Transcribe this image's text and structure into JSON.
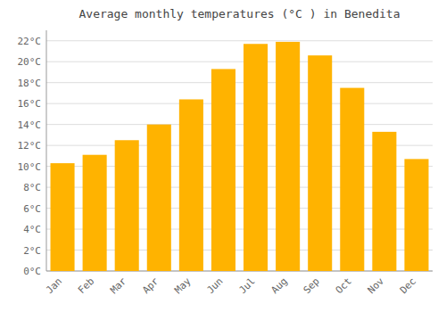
{
  "chart_data": {
    "type": "bar",
    "title": "Average monthly temperatures (°C ) in Benedita",
    "categories": [
      "Jan",
      "Feb",
      "Mar",
      "Apr",
      "May",
      "Jun",
      "Jul",
      "Aug",
      "Sep",
      "Oct",
      "Nov",
      "Dec"
    ],
    "values": [
      10.3,
      11.1,
      12.5,
      14.0,
      16.4,
      19.3,
      21.7,
      21.9,
      20.6,
      17.5,
      13.3,
      10.7
    ],
    "color": "#FFB300",
    "ylim": [
      0,
      23
    ],
    "yticks": [
      {
        "value": 0,
        "label": "0°C"
      },
      {
        "value": 2,
        "label": "2°C"
      },
      {
        "value": 4,
        "label": "4°C"
      },
      {
        "value": 6,
        "label": "6°C"
      },
      {
        "value": 8,
        "label": "8°C"
      },
      {
        "value": 10,
        "label": "10°C"
      },
      {
        "value": 12,
        "label": "12°C"
      },
      {
        "value": 14,
        "label": "14°C"
      },
      {
        "value": 16,
        "label": "16°C"
      },
      {
        "value": 18,
        "label": "18°C"
      },
      {
        "value": 20,
        "label": "20°C"
      },
      {
        "value": 22,
        "label": "22°C"
      }
    ],
    "grid": true
  }
}
